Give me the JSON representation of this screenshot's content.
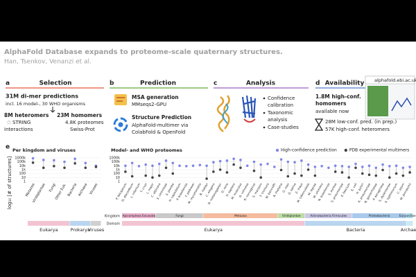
{
  "header": {
    "title": "AlphaFold Database expands to proteome-scale quaternary structures.",
    "authors": "Han, Tsenkov, Venanzi et al."
  },
  "panels": {
    "a": {
      "letter": "a",
      "heading": "Selection",
      "line1": "31M di-mer predictions",
      "line2": "incl. 16 model-, 30 WHO organisms",
      "hetero": "8M heteromers",
      "string1": "STRING",
      "string2": "interactions",
      "homo": "23M homomers",
      "homo2": "4.8K proteomes",
      "homo3": "Swiss-Prot"
    },
    "b": {
      "letter": "b",
      "heading": "Prediction",
      "msa": "MSA generation",
      "msa2": "MMseqs2-GPU",
      "sp": "Structure Prediction",
      "sp2": "AlphaFold-multimer via",
      "sp3": "ColabFold & OpenFold"
    },
    "c": {
      "letter": "c",
      "heading": "Analysis",
      "bullets": [
        [
          "Confidence",
          "calibration"
        ],
        [
          "Taxonomic",
          "analysis"
        ],
        [
          "Case-studies"
        ]
      ]
    },
    "d": {
      "letter": "d",
      "heading": "Availability",
      "url": "alphafold.ebi.ac.uk",
      "l1": "1.8M high-conf.",
      "l2": "homomers",
      "l3": "available now",
      "l4": "28M low-conf. pred. (in prep.)",
      "l5": "57K high-conf. heteromers"
    },
    "e": {
      "letter": "e"
    }
  },
  "chart_data": [
    {
      "type": "lollipop",
      "title": "Per kingdom and viruses",
      "ylabel": "log₁₀ [# of structures]",
      "log": true,
      "categories": [
        "Metazoa",
        "Viridiplantae",
        "Fungi",
        "Other Euk.",
        "Bacteria",
        "Archaea",
        "Viruses"
      ],
      "series": [
        {
          "color": "#7f86e8",
          "values": [
            800000,
            300000,
            250000,
            100000,
            600000,
            50000,
            10000
          ]
        },
        {
          "color": "#444444",
          "values": [
            60000,
            3000,
            8000,
            3000,
            40000,
            3000,
            5000
          ]
        }
      ],
      "domain": [
        "Eukarya",
        "Eukarya",
        "Eukarya",
        "Eukarya",
        "Prokarya",
        "Prokarya",
        "Viruses"
      ],
      "domain_colors": {
        "Eukarya": "#f2c4d2",
        "Prokarya": "#b9d5ef",
        "Viruses": "#d0d0d0"
      },
      "ylim": [
        1,
        1000000
      ],
      "yticks": [
        1,
        10,
        100,
        {
          "value": 1000,
          "label": "1k"
        },
        {
          "value": 10000,
          "label": "10k"
        },
        {
          "value": 100000,
          "label": "100k"
        },
        {
          "value": 1000000,
          "label": "1000k"
        }
      ]
    },
    {
      "type": "lollipop",
      "title": "Model- and WHO proteomes",
      "log": true,
      "row_labels": [
        "Kingdom",
        "Domain"
      ],
      "categories": [
        "P. falciparum",
        "D. discoideum",
        "L. infantum",
        "T. cruzi",
        "L. major",
        "C. albicans",
        "S. cerevisiae",
        "S. pombe",
        "H. capsulatum",
        "P. brasiliensis",
        "F. pedrosoi",
        "M. mycetomatis",
        "B. malayi",
        "C. elegans",
        "D. melanogaster",
        "D. rerio",
        "H. sapiens",
        "M. musculus",
        "O. volvulus",
        "R. norvegicus",
        "S. mansoni",
        "T. trichiura",
        "W. bancrofti",
        "A. thaliana",
        "G. max",
        "O. sativa",
        "Z. mays",
        "M. tuberculosis",
        "M. leprae",
        "M. ulcerans",
        "N. brasiliensis",
        "S. aureus",
        "S. pneumoniae",
        "E. faecium",
        "E. coli",
        "H. pylori",
        "K. pneumoniae",
        "N. gonorrhoeae",
        "P. aeruginosa",
        "S. dysenteriae",
        "S. typhimurium",
        "C. jejuni",
        "M. jannaschii"
      ],
      "series": [
        {
          "name": "High-confidence prediction",
          "color": "#7f86e8",
          "values": [
            10000,
            50000,
            8000,
            20000,
            10000,
            30000,
            200000,
            50000,
            10000,
            8000,
            10000,
            15000,
            10000,
            80000,
            150000,
            200000,
            600000,
            300000,
            10000,
            100000,
            20000,
            30000,
            5000,
            400000,
            100000,
            80000,
            200000,
            20000,
            5000,
            8000,
            3000,
            10000,
            8000,
            5000,
            30000,
            5000,
            10000,
            3000,
            20000,
            8000,
            10000,
            3000,
            5000
          ]
        },
        {
          "name": "PDB experimental multimers",
          "color": "#444444",
          "values": [
            300,
            20,
            null,
            30,
            10,
            30,
            3000,
            100,
            null,
            null,
            null,
            null,
            5,
            300,
            1000,
            200,
            20000,
            3000,
            null,
            500,
            10,
            null,
            null,
            800,
            20,
            100,
            30,
            1000,
            30,
            null,
            null,
            300,
            200,
            10,
            3000,
            100,
            50,
            30,
            800,
            10,
            100,
            30,
            200
          ]
        }
      ],
      "kingdom": [
        "Apicomplexa Excavata",
        "Apicomplexa Excavata",
        "Apicomplexa Excavata",
        "Apicomplexa Excavata",
        "Apicomplexa Excavata",
        "Fungi",
        "Fungi",
        "Fungi",
        "Fungi",
        "Fungi",
        "Fungi",
        "Fungi",
        "Metazoa",
        "Metazoa",
        "Metazoa",
        "Metazoa",
        "Metazoa",
        "Metazoa",
        "Metazoa",
        "Metazoa",
        "Metazoa",
        "Metazoa",
        "Metazoa",
        "Viridiplantae",
        "Viridiplantae",
        "Viridiplantae",
        "Viridiplantae",
        "Actinobacteria Firmicutes",
        "Actinobacteria Firmicutes",
        "Actinobacteria Firmicutes",
        "Actinobacteria Firmicutes",
        "Actinobacteria Firmicutes",
        "Actinobacteria Firmicutes",
        "Actinobacteria Firmicutes",
        "Proteobacteria",
        "Proteobacteria",
        "Proteobacteria",
        "Proteobacteria",
        "Proteobacteria",
        "Proteobacteria",
        "Proteobacteria",
        "Proteobacteria",
        "Euryarchaeota"
      ],
      "kingdom_colors": {
        "Apicomplexa Excavata": "#eab0cc",
        "Fungi": "#c9c9c9",
        "Metazoa": "#f4bb9e",
        "Viridiplantae": "#bcdca4",
        "Actinobacteria Firmicutes": "#c9c9e6",
        "Proteobacteria": "#a9c9ea",
        "Euryarchaeota": "#a9d9e9"
      },
      "domain": [
        "Eukarya",
        "Eukarya",
        "Eukarya",
        "Eukarya",
        "Eukarya",
        "Eukarya",
        "Eukarya",
        "Eukarya",
        "Eukarya",
        "Eukarya",
        "Eukarya",
        "Eukarya",
        "Eukarya",
        "Eukarya",
        "Eukarya",
        "Eukarya",
        "Eukarya",
        "Eukarya",
        "Eukarya",
        "Eukarya",
        "Eukarya",
        "Eukarya",
        "Eukarya",
        "Eukarya",
        "Eukarya",
        "Eukarya",
        "Eukarya",
        "Bacteria",
        "Bacteria",
        "Bacteria",
        "Bacteria",
        "Bacteria",
        "Bacteria",
        "Bacteria",
        "Bacteria",
        "Bacteria",
        "Bacteria",
        "Bacteria",
        "Bacteria",
        "Bacteria",
        "Bacteria",
        "Bacteria",
        "Archaea"
      ],
      "domain_colors": {
        "Eukarya": "#f2c4d2",
        "Bacteria": "#b9d5ef",
        "Archaea": "#cbe9f1"
      },
      "ylim": [
        1,
        1000000
      ],
      "yticks": [
        1,
        10,
        100,
        {
          "value": 1000,
          "label": "1k"
        },
        {
          "value": 10000,
          "label": "10k"
        },
        {
          "value": 100000,
          "label": "100k"
        },
        {
          "value": 1000000,
          "label": "1000k"
        }
      ]
    }
  ]
}
